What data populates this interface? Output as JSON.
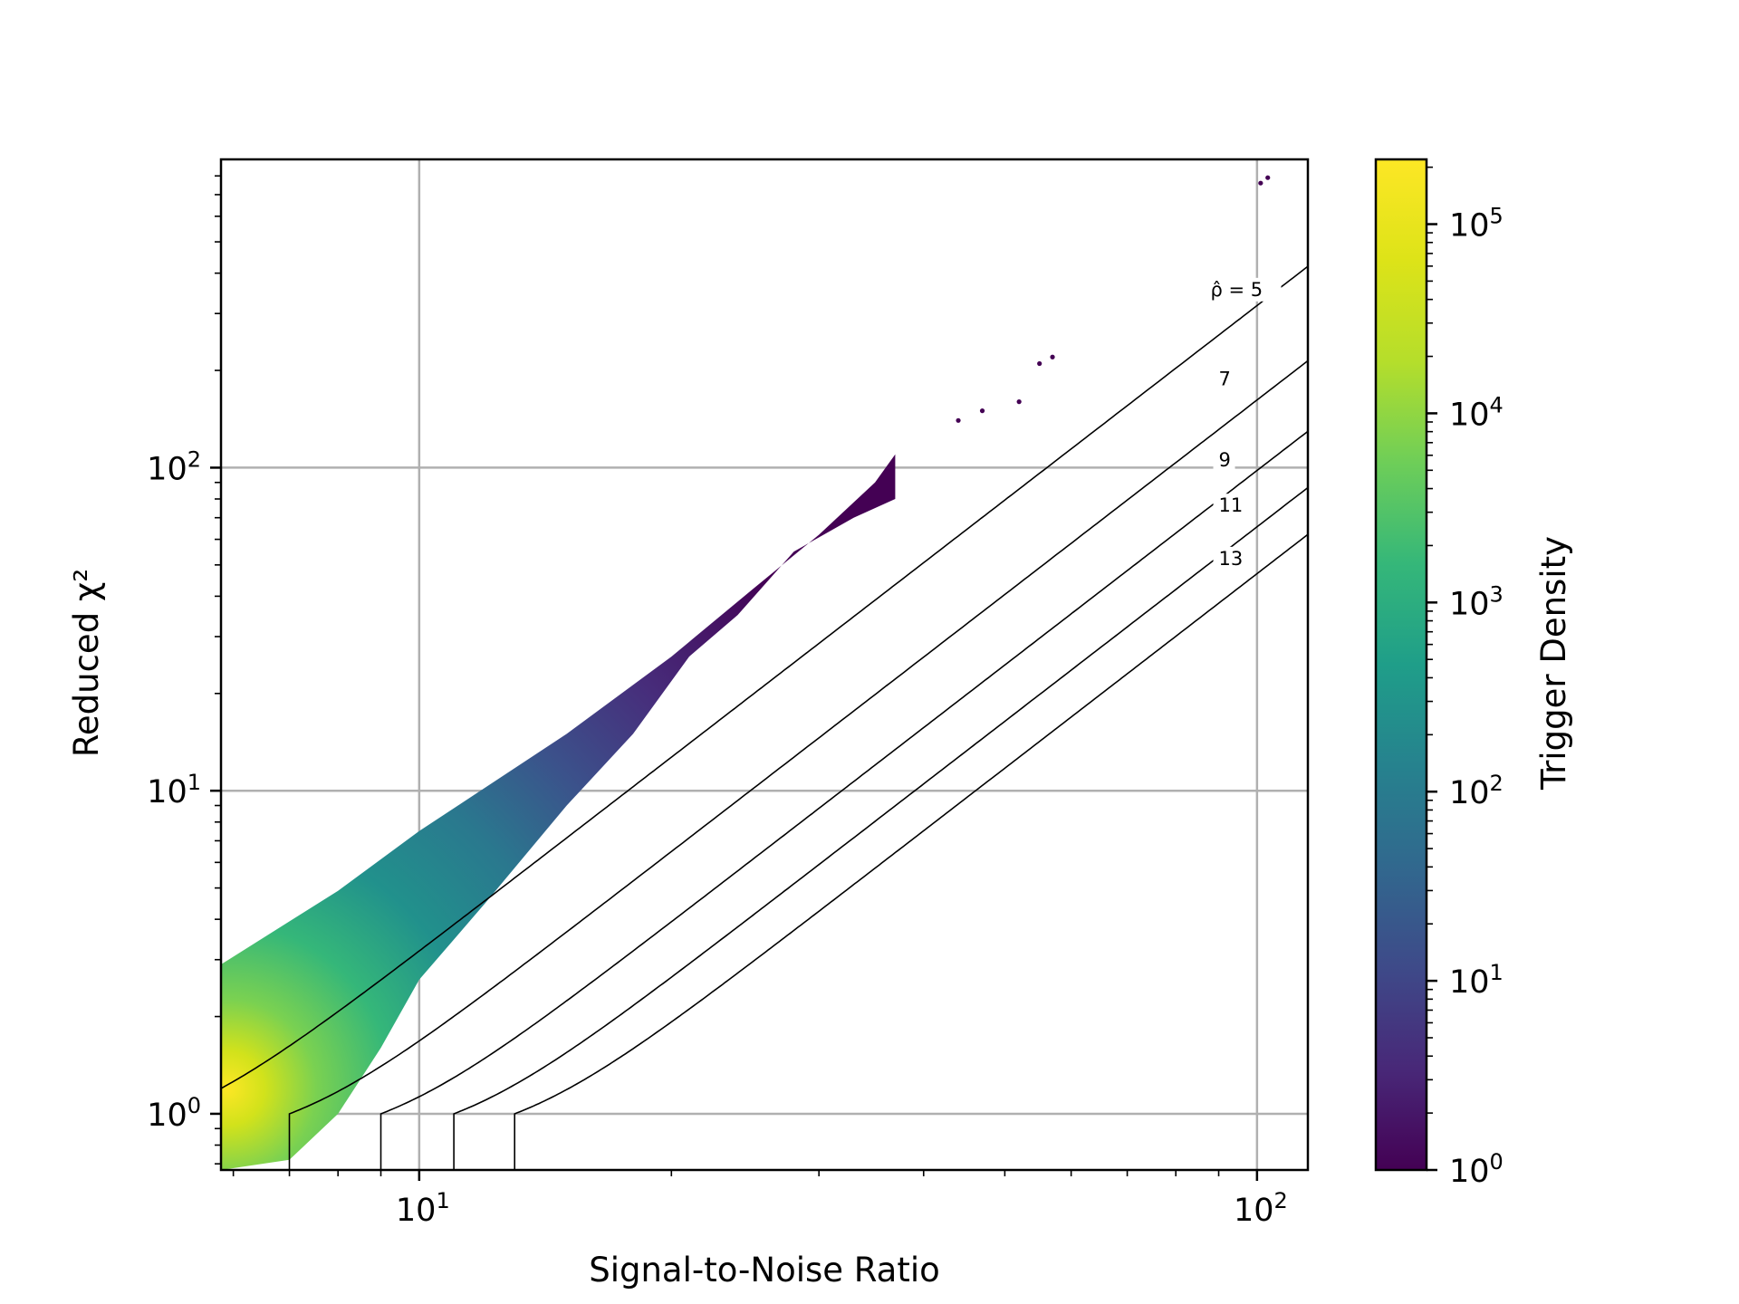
{
  "chart_data": {
    "type": "heatmap",
    "title": "",
    "xlabel": "Signal-to-Noise Ratio",
    "ylabel": "Reduced χ²",
    "xscale": "log",
    "yscale": "log",
    "xlim": [
      5.8,
      115
    ],
    "ylim": [
      0.67,
      900
    ],
    "grid": true,
    "x_ticks": [
      {
        "value": 10,
        "base": "10",
        "exp": "1"
      },
      {
        "value": 100,
        "base": "10",
        "exp": "2"
      }
    ],
    "y_ticks": [
      {
        "value": 1,
        "base": "10",
        "exp": "0"
      },
      {
        "value": 10,
        "base": "10",
        "exp": "1"
      },
      {
        "value": 100,
        "base": "10",
        "exp": "2"
      }
    ],
    "colorbar": {
      "label": "Trigger Density",
      "scale": "log",
      "colormap": "viridis",
      "range": [
        1,
        220000
      ],
      "ticks": [
        {
          "value": 1,
          "base": "10",
          "exp": "0"
        },
        {
          "value": 10,
          "base": "10",
          "exp": "1"
        },
        {
          "value": 100,
          "base": "10",
          "exp": "2"
        },
        {
          "value": 1000,
          "base": "10",
          "exp": "3"
        },
        {
          "value": 10000,
          "base": "10",
          "exp": "4"
        },
        {
          "value": 100000,
          "base": "10",
          "exp": "5"
        }
      ]
    },
    "density_region": {
      "upper_edge": [
        [
          5.8,
          2.9
        ],
        [
          8,
          4.9
        ],
        [
          10,
          7.5
        ],
        [
          15,
          15
        ],
        [
          20,
          26
        ],
        [
          25,
          42
        ],
        [
          30,
          62
        ],
        [
          35,
          90
        ],
        [
          37,
          110
        ]
      ],
      "lower_edge": [
        [
          5.8,
          0.67
        ],
        [
          7,
          0.72
        ],
        [
          8,
          1.0
        ],
        [
          9,
          1.6
        ],
        [
          10,
          2.6
        ],
        [
          12,
          4.5
        ],
        [
          15,
          9
        ],
        [
          18,
          15
        ],
        [
          21,
          26
        ],
        [
          24,
          35
        ],
        [
          28,
          55
        ],
        [
          33,
          70
        ],
        [
          37,
          80
        ]
      ],
      "peak_location": [
        5.9,
        1.2
      ],
      "peak_density": 200000
    },
    "outliers": [
      [
        44,
        140
      ],
      [
        47,
        150
      ],
      [
        52,
        160
      ],
      [
        55,
        210
      ],
      [
        57,
        220
      ],
      [
        101,
        760
      ],
      [
        103,
        790
      ]
    ],
    "contours": [
      {
        "label": "ρ̂ = 5",
        "value": 5,
        "label_at": [
          88,
          340
        ]
      },
      {
        "label": "7",
        "value": 7,
        "label_at": [
          90,
          180
        ]
      },
      {
        "label": "9",
        "value": 9,
        "label_at": [
          90,
          101
        ]
      },
      {
        "label": "11",
        "value": 11,
        "label_at": [
          90,
          73
        ]
      },
      {
        "label": "13",
        "value": 13,
        "label_at": [
          90,
          50
        ]
      }
    ]
  }
}
